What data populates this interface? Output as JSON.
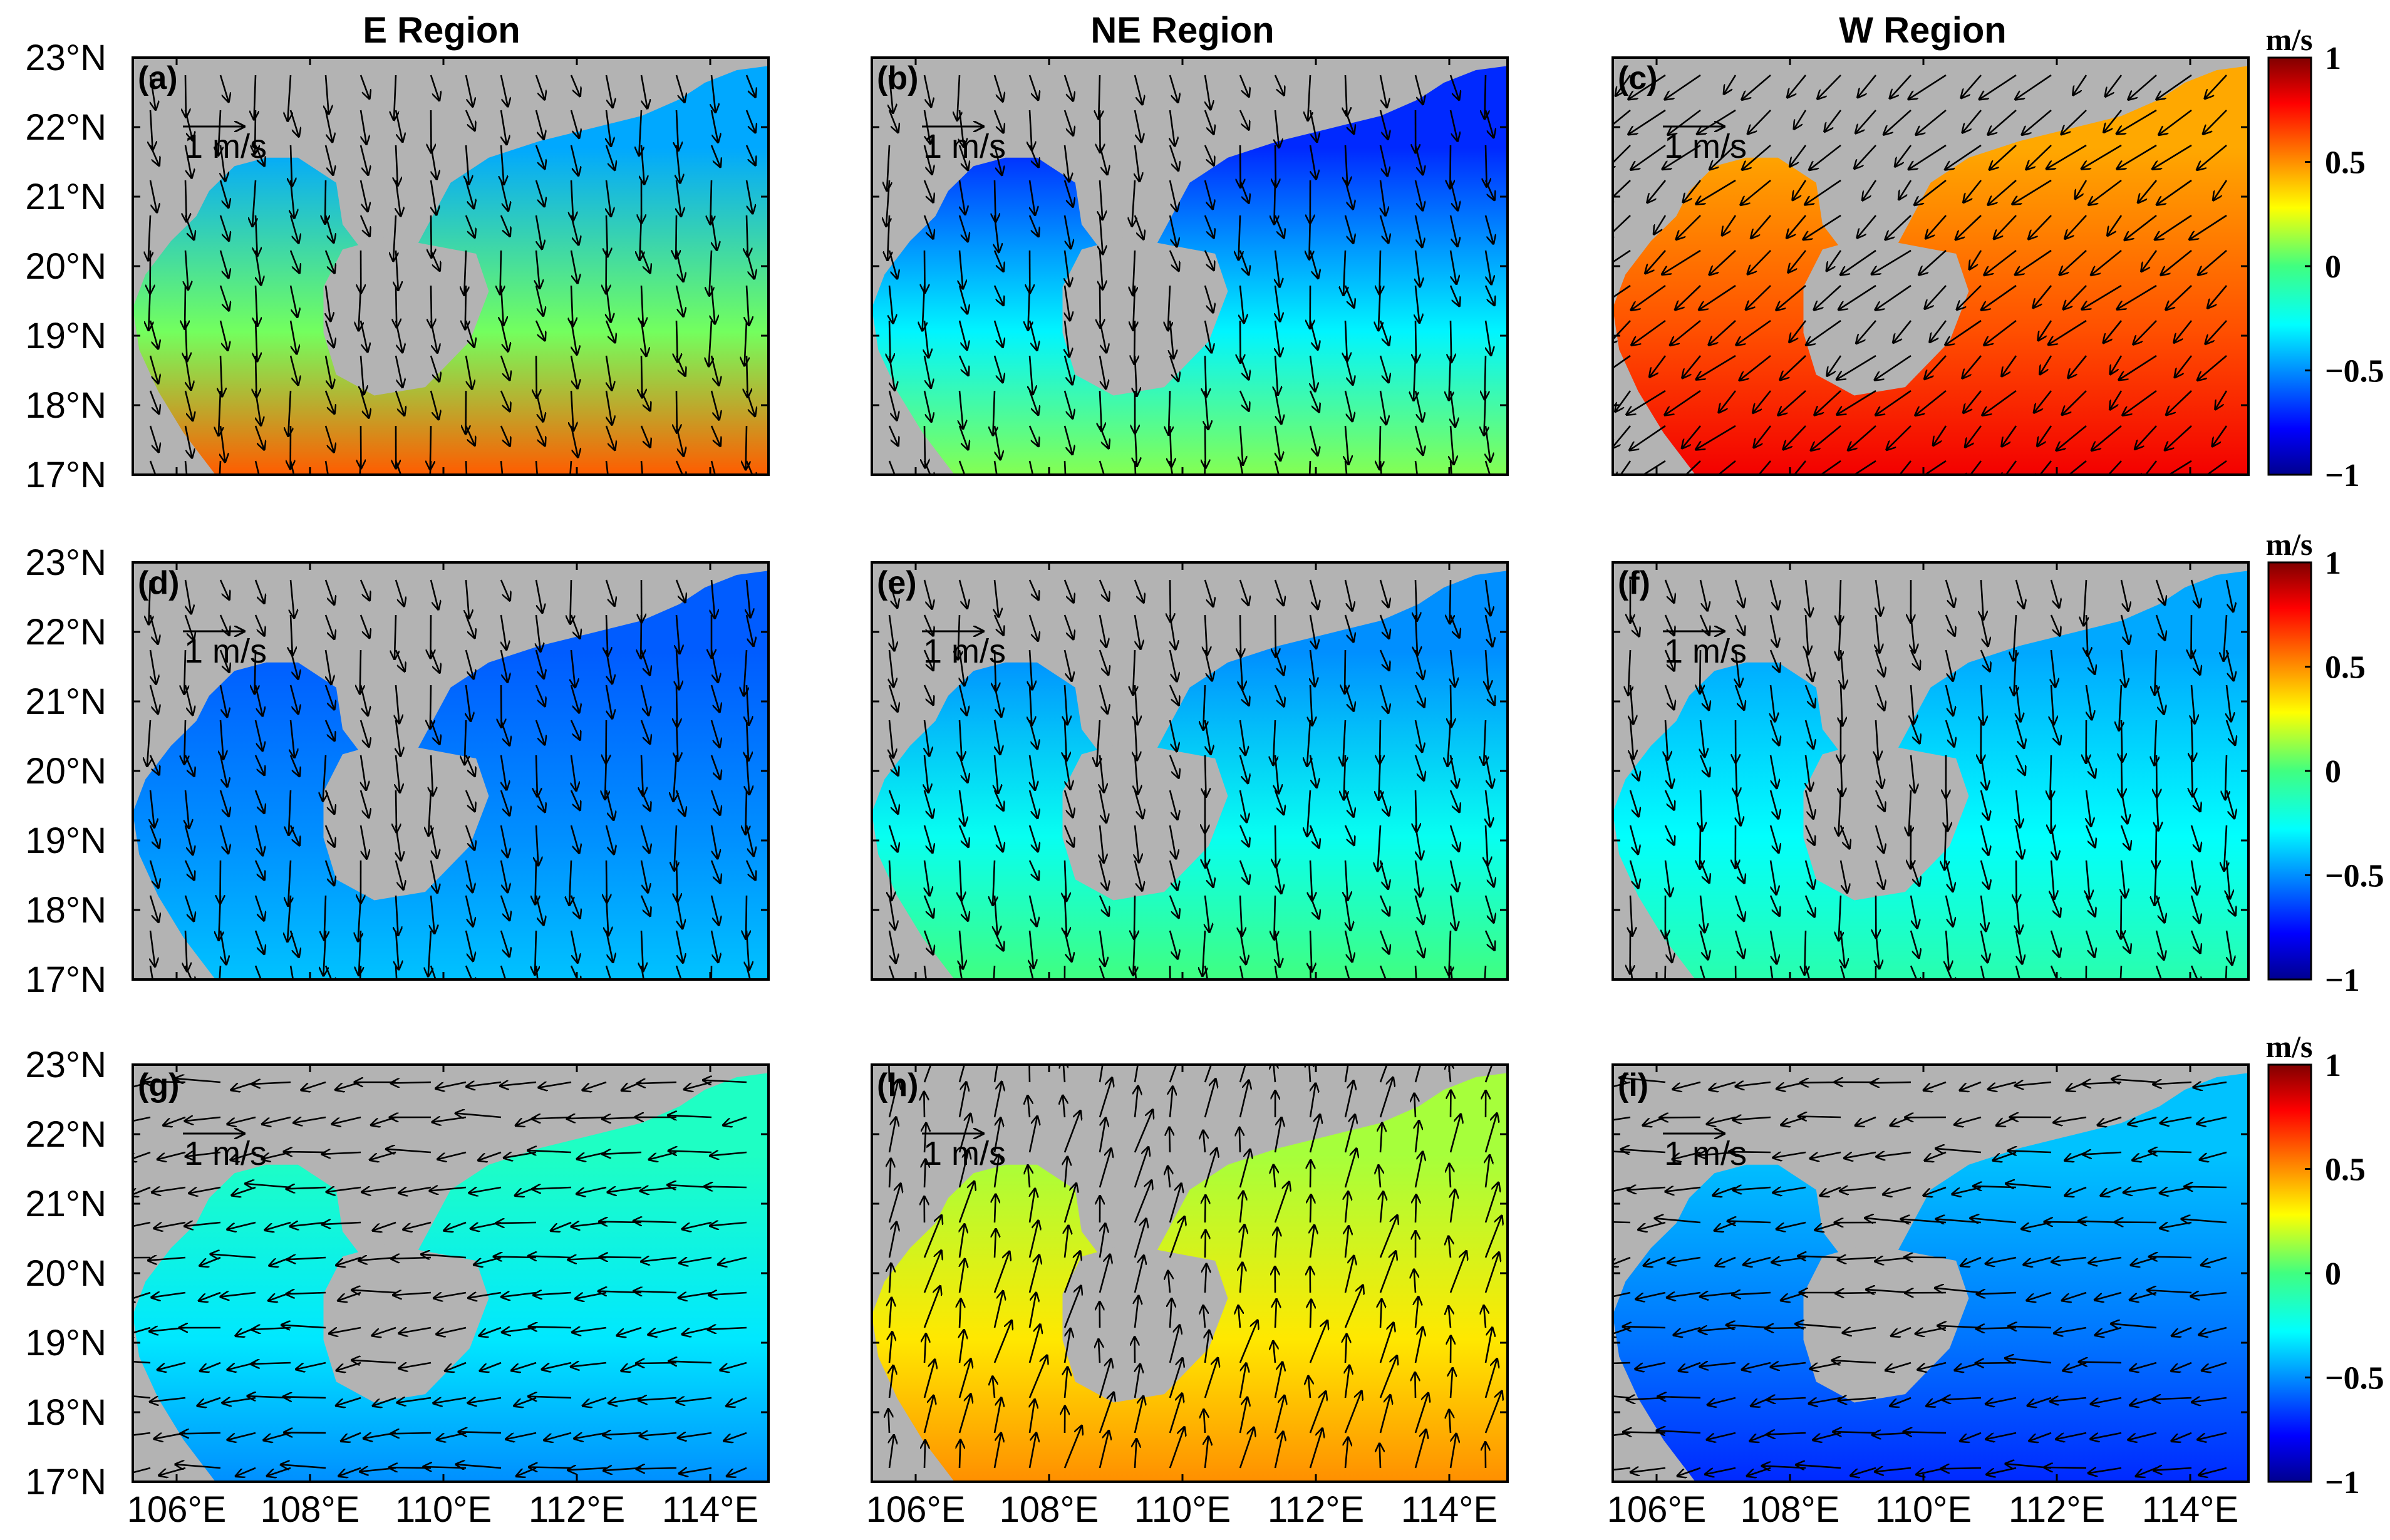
{
  "figure": {
    "column_titles": [
      "E Region",
      "NE Region",
      "W Region"
    ],
    "y_tick_labels": [
      "23°N",
      "22°N",
      "21°N",
      "20°N",
      "19°N",
      "18°N",
      "17°N"
    ],
    "x_tick_labels": [
      "106°E",
      "108°E",
      "110°E",
      "112°E",
      "114°E"
    ],
    "reference_vector_label": "1 m/s",
    "colorbar": {
      "unit": "m/s",
      "tick_labels": [
        "1",
        "0.5",
        "0",
        "−0.5",
        "−1"
      ],
      "colormap": [
        "#00008f",
        "#0000ff",
        "#00a0ff",
        "#00ffff",
        "#00ff80",
        "#80ff00",
        "#ffff00",
        "#ff8000",
        "#ff0000",
        "#800000"
      ]
    },
    "land_color": "#b3b3b3",
    "panels": [
      {
        "label": "(a)",
        "row": 0,
        "col": 0,
        "mean_speed": -0.45,
        "flow": "southward",
        "south_patch": 0.6
      },
      {
        "label": "(b)",
        "row": 0,
        "col": 1,
        "mean_speed": -0.7,
        "flow": "southward",
        "south_patch": 0.1
      },
      {
        "label": "(c)",
        "row": 0,
        "col": 2,
        "mean_speed": 0.45,
        "flow": "southwestward",
        "south_patch": 0.8
      },
      {
        "label": "(d)",
        "row": 1,
        "col": 0,
        "mean_speed": -0.6,
        "flow": "southward",
        "south_patch": -0.4
      },
      {
        "label": "(e)",
        "row": 1,
        "col": 1,
        "mean_speed": -0.5,
        "flow": "southward",
        "south_patch": 0.0
      },
      {
        "label": "(f)",
        "row": 1,
        "col": 2,
        "mean_speed": -0.45,
        "flow": "southward",
        "south_patch": -0.1
      },
      {
        "label": "(g)",
        "row": 2,
        "col": 0,
        "mean_speed": -0.15,
        "flow": "westward",
        "south_patch": -0.5
      },
      {
        "label": "(h)",
        "row": 2,
        "col": 1,
        "mean_speed": 0.15,
        "flow": "northward",
        "south_patch": 0.5
      },
      {
        "label": "(i)",
        "row": 2,
        "col": 2,
        "mean_speed": -0.4,
        "flow": "westward",
        "south_patch": -0.7
      }
    ]
  }
}
